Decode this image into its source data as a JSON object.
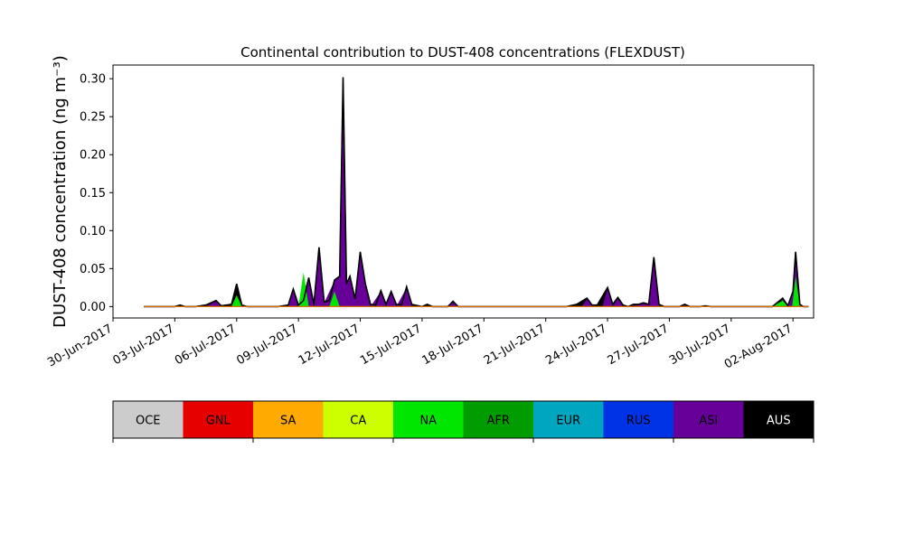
{
  "chart_data": {
    "type": "area",
    "stacked": true,
    "title": "Continental contribution to DUST-408 concentrations (FLEXDUST)",
    "xlabel": "",
    "ylabel": "DUST-408 concentration (ng m⁻³)",
    "x_range": [
      "2017-06-30",
      "2017-08-03"
    ],
    "ylim": [
      -0.015,
      0.318
    ],
    "yticks": [
      0.0,
      0.05,
      0.1,
      0.15,
      0.2,
      0.25,
      0.3
    ],
    "ytick_labels": [
      "0.00",
      "0.05",
      "0.10",
      "0.15",
      "0.20",
      "0.25",
      "0.30"
    ],
    "xticks": [
      "2017-06-30",
      "2017-07-03",
      "2017-07-06",
      "2017-07-09",
      "2017-07-12",
      "2017-07-15",
      "2017-07-18",
      "2017-07-21",
      "2017-07-24",
      "2017-07-27",
      "2017-07-30",
      "2017-08-02"
    ],
    "xtick_labels": [
      "30-Jun-2017",
      "03-Jul-2017",
      "06-Jul-2017",
      "09-Jul-2017",
      "12-Jul-2017",
      "15-Jul-2017",
      "18-Jul-2017",
      "21-Jul-2017",
      "24-Jul-2017",
      "27-Jul-2017",
      "30-Jul-2017",
      "02-Aug-2017"
    ],
    "grid": false,
    "legend": {
      "placement": "colorbar-below",
      "entries": [
        {
          "label": "OCE",
          "color": "#cccccc",
          "text_color": "#000000"
        },
        {
          "label": "GNL",
          "color": "#e60000",
          "text_color": "#000000"
        },
        {
          "label": "SA",
          "color": "#ffaa00",
          "text_color": "#000000"
        },
        {
          "label": "CA",
          "color": "#ccff00",
          "text_color": "#000000"
        },
        {
          "label": "NA",
          "color": "#00e600",
          "text_color": "#000000"
        },
        {
          "label": "AFR",
          "color": "#009c00",
          "text_color": "#000000"
        },
        {
          "label": "EUR",
          "color": "#00a6bf",
          "text_color": "#000000"
        },
        {
          "label": "RUS",
          "color": "#0033e6",
          "text_color": "#000000"
        },
        {
          "label": "ASI",
          "color": "#660099",
          "text_color": "#000000"
        },
        {
          "label": "AUS",
          "color": "#000000",
          "text_color": "#ffffff"
        }
      ]
    },
    "series": [
      {
        "name": "NA",
        "color": "#00e600",
        "points": [
          [
            "2017-07-01T12:00",
            0.0
          ],
          [
            "2017-07-05T18:00",
            0.0
          ],
          [
            "2017-07-06T00:00",
            0.015
          ],
          [
            "2017-07-06T06:00",
            0.0
          ],
          [
            "2017-07-09T00:00",
            0.0
          ],
          [
            "2017-07-09T06:00",
            0.045
          ],
          [
            "2017-07-09T12:00",
            0.0
          ],
          [
            "2017-07-10T12:00",
            0.0
          ],
          [
            "2017-07-10T18:00",
            0.02
          ],
          [
            "2017-07-11T00:00",
            0.0
          ],
          [
            "2017-08-01T00:00",
            0.0
          ],
          [
            "2017-08-01T12:00",
            0.008
          ],
          [
            "2017-08-01T18:00",
            0.0
          ],
          [
            "2017-08-01T23:00",
            0.0
          ],
          [
            "2017-08-02T03:00",
            0.04
          ],
          [
            "2017-08-02T08:00",
            0.0
          ],
          [
            "2017-08-02T18:00",
            0.0
          ]
        ]
      }
    ],
    "total": {
      "color": "#000000",
      "points": [
        [
          "2017-07-01T12:00",
          0.0
        ],
        [
          "2017-07-03T00:00",
          0.0
        ],
        [
          "2017-07-03T06:00",
          0.002
        ],
        [
          "2017-07-03T12:00",
          0.0
        ],
        [
          "2017-07-04T00:00",
          0.0
        ],
        [
          "2017-07-04T12:00",
          0.002
        ],
        [
          "2017-07-05T00:00",
          0.008
        ],
        [
          "2017-07-05T06:00",
          0.001
        ],
        [
          "2017-07-05T18:00",
          0.003
        ],
        [
          "2017-07-06T00:00",
          0.03
        ],
        [
          "2017-07-06T06:00",
          0.002
        ],
        [
          "2017-07-06T12:00",
          0.0
        ],
        [
          "2017-07-07T00:00",
          0.0
        ],
        [
          "2017-07-08T00:00",
          0.0
        ],
        [
          "2017-07-08T12:00",
          0.002
        ],
        [
          "2017-07-08T18:00",
          0.023
        ],
        [
          "2017-07-09T00:00",
          0.002
        ],
        [
          "2017-07-09T06:00",
          0.008
        ],
        [
          "2017-07-09T12:00",
          0.038
        ],
        [
          "2017-07-09T18:00",
          0.003
        ],
        [
          "2017-07-10T00:00",
          0.078
        ],
        [
          "2017-07-10T06:00",
          0.006
        ],
        [
          "2017-07-10T12:00",
          0.008
        ],
        [
          "2017-07-10T18:00",
          0.035
        ],
        [
          "2017-07-11T00:00",
          0.04
        ],
        [
          "2017-07-11T04:00",
          0.302
        ],
        [
          "2017-07-11T08:00",
          0.03
        ],
        [
          "2017-07-11T12:00",
          0.04
        ],
        [
          "2017-07-11T18:00",
          0.01
        ],
        [
          "2017-07-12T00:00",
          0.072
        ],
        [
          "2017-07-12T06:00",
          0.03
        ],
        [
          "2017-07-12T12:00",
          0.003
        ],
        [
          "2017-07-12T18:00",
          0.002
        ],
        [
          "2017-07-13T00:00",
          0.021
        ],
        [
          "2017-07-13T06:00",
          0.003
        ],
        [
          "2017-07-13T12:00",
          0.02
        ],
        [
          "2017-07-13T18:00",
          0.003
        ],
        [
          "2017-07-14T00:00",
          0.002
        ],
        [
          "2017-07-14T06:00",
          0.026
        ],
        [
          "2017-07-14T12:00",
          0.003
        ],
        [
          "2017-07-15T00:00",
          0.0
        ],
        [
          "2017-07-15T06:00",
          0.003
        ],
        [
          "2017-07-15T12:00",
          0.0
        ],
        [
          "2017-07-16T06:00",
          0.0
        ],
        [
          "2017-07-16T12:00",
          0.007
        ],
        [
          "2017-07-16T18:00",
          0.0
        ],
        [
          "2017-07-22T00:00",
          0.0
        ],
        [
          "2017-07-22T12:00",
          0.003
        ],
        [
          "2017-07-23T00:00",
          0.011
        ],
        [
          "2017-07-23T06:00",
          0.002
        ],
        [
          "2017-07-23T12:00",
          0.002
        ],
        [
          "2017-07-24T00:00",
          0.025
        ],
        [
          "2017-07-24T06:00",
          0.003
        ],
        [
          "2017-07-24T12:00",
          0.012
        ],
        [
          "2017-07-24T18:00",
          0.002
        ],
        [
          "2017-07-25T00:00",
          0.0
        ],
        [
          "2017-07-25T06:00",
          0.003
        ],
        [
          "2017-07-25T12:00",
          0.003
        ],
        [
          "2017-07-25T18:00",
          0.005
        ],
        [
          "2017-07-26T00:00",
          0.003
        ],
        [
          "2017-07-26T06:00",
          0.065
        ],
        [
          "2017-07-26T12:00",
          0.003
        ],
        [
          "2017-07-26T18:00",
          0.0
        ],
        [
          "2017-07-27T12:00",
          0.0
        ],
        [
          "2017-07-27T18:00",
          0.003
        ],
        [
          "2017-07-28T00:00",
          0.0
        ],
        [
          "2017-07-28T12:00",
          0.0
        ],
        [
          "2017-07-28T18:00",
          0.001
        ],
        [
          "2017-07-29T00:00",
          0.0
        ],
        [
          "2017-07-31T12:00",
          0.0
        ],
        [
          "2017-08-01T00:00",
          0.0
        ],
        [
          "2017-08-01T12:00",
          0.011
        ],
        [
          "2017-08-01T18:00",
          0.001
        ],
        [
          "2017-08-02T00:00",
          0.02
        ],
        [
          "2017-08-02T03:00",
          0.072
        ],
        [
          "2017-08-02T08:00",
          0.003
        ],
        [
          "2017-08-02T12:00",
          0.0
        ],
        [
          "2017-08-02T18:00",
          0.0
        ]
      ]
    },
    "stacked_layers": [
      {
        "name": "ASI",
        "color": "#660099",
        "points": [
          [
            "2017-07-01T12:00",
            0.0
          ],
          [
            "2017-07-04T12:00",
            0.0
          ],
          [
            "2017-07-05T00:00",
            0.007
          ],
          [
            "2017-07-05T06:00",
            0.0
          ],
          [
            "2017-07-08T12:00",
            0.0
          ],
          [
            "2017-07-08T18:00",
            0.022
          ],
          [
            "2017-07-09T00:00",
            0.0
          ],
          [
            "2017-07-09T12:00",
            0.038
          ],
          [
            "2017-07-09T18:00",
            0.0
          ],
          [
            "2017-07-10T00:00",
            0.078
          ],
          [
            "2017-07-10T06:00",
            0.005
          ],
          [
            "2017-07-10T18:00",
            0.034
          ],
          [
            "2017-07-11T00:00",
            0.039
          ],
          [
            "2017-07-11T04:00",
            0.3
          ],
          [
            "2017-07-11T08:00",
            0.029
          ],
          [
            "2017-07-11T12:00",
            0.039
          ],
          [
            "2017-07-11T18:00",
            0.009
          ],
          [
            "2017-07-12T00:00",
            0.071
          ],
          [
            "2017-07-12T06:00",
            0.029
          ],
          [
            "2017-07-12T12:00",
            0.0
          ],
          [
            "2017-07-13T00:00",
            0.02
          ],
          [
            "2017-07-13T06:00",
            0.0
          ],
          [
            "2017-07-13T12:00",
            0.019
          ],
          [
            "2017-07-13T18:00",
            0.0
          ],
          [
            "2017-07-14T06:00",
            0.025
          ],
          [
            "2017-07-14T12:00",
            0.0
          ],
          [
            "2017-07-16T06:00",
            0.0
          ],
          [
            "2017-07-16T12:00",
            0.006
          ],
          [
            "2017-07-16T18:00",
            0.0
          ],
          [
            "2017-07-22T18:00",
            0.0
          ],
          [
            "2017-07-23T00:00",
            0.01
          ],
          [
            "2017-07-23T06:00",
            0.0
          ],
          [
            "2017-07-23T18:00",
            0.0
          ],
          [
            "2017-07-24T00:00",
            0.024
          ],
          [
            "2017-07-24T06:00",
            0.0
          ],
          [
            "2017-07-24T12:00",
            0.011
          ],
          [
            "2017-07-24T18:00",
            0.0
          ],
          [
            "2017-07-25T12:00",
            0.002
          ],
          [
            "2017-07-25T18:00",
            0.004
          ],
          [
            "2017-07-26T00:00",
            0.002
          ],
          [
            "2017-07-26T06:00",
            0.064
          ],
          [
            "2017-07-26T12:00",
            0.0
          ],
          [
            "2017-07-27T12:00",
            0.0
          ],
          [
            "2017-07-27T18:00",
            0.002
          ],
          [
            "2017-07-28T00:00",
            0.0
          ],
          [
            "2017-08-01T06:00",
            0.0
          ],
          [
            "2017-08-01T12:00",
            0.01
          ],
          [
            "2017-08-01T18:00",
            0.0
          ],
          [
            "2017-08-02T00:00",
            0.019
          ],
          [
            "2017-08-02T03:00",
            0.07
          ],
          [
            "2017-08-02T08:00",
            0.002
          ],
          [
            "2017-08-02T18:00",
            0.0
          ]
        ]
      }
    ],
    "baseline_line": {
      "color": "#e07000",
      "from": "2017-07-01T12:00",
      "to": "2017-08-02T18:00",
      "value": 0.0
    }
  }
}
